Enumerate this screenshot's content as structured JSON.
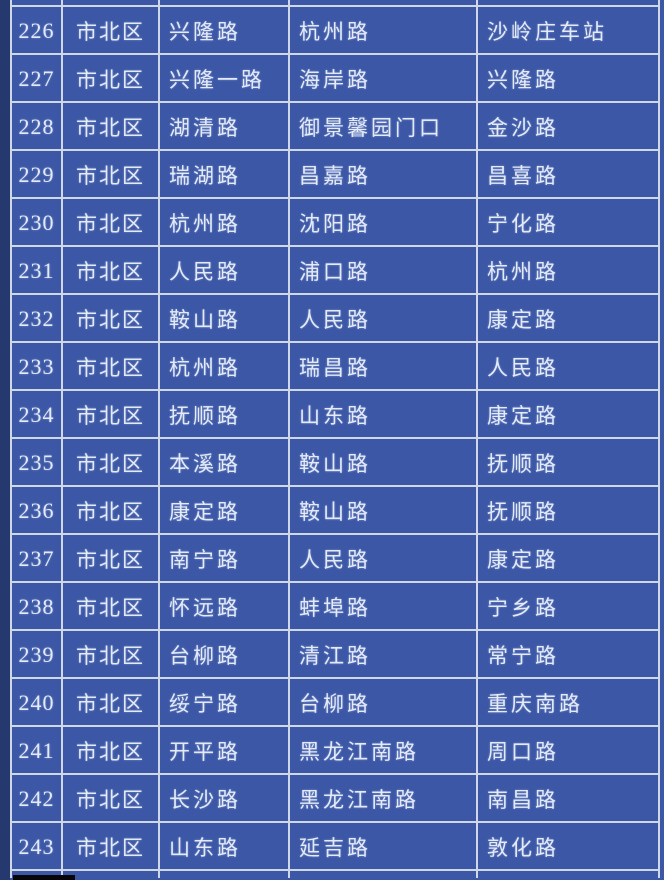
{
  "page": {
    "background_color": "#3b57a6",
    "side_strip_color": "#26396f",
    "grid_line_color": "#cfd8e9",
    "cell_color": "#3b57a6",
    "text_color": "#e4eaf8",
    "bottom_patch_color": "#060608"
  },
  "table": {
    "rows": [
      {
        "num": "226",
        "district": "市北区",
        "road": "兴隆路",
        "cross1": "杭州路",
        "cross2": "沙岭庄车站"
      },
      {
        "num": "227",
        "district": "市北区",
        "road": "兴隆一路",
        "cross1": "海岸路",
        "cross2": "兴隆路"
      },
      {
        "num": "228",
        "district": "市北区",
        "road": "湖清路",
        "cross1": "御景馨园门口",
        "cross2": "金沙路"
      },
      {
        "num": "229",
        "district": "市北区",
        "road": "瑞湖路",
        "cross1": "昌嘉路",
        "cross2": "昌喜路"
      },
      {
        "num": "230",
        "district": "市北区",
        "road": "杭州路",
        "cross1": "沈阳路",
        "cross2": "宁化路"
      },
      {
        "num": "231",
        "district": "市北区",
        "road": "人民路",
        "cross1": "浦口路",
        "cross2": "杭州路"
      },
      {
        "num": "232",
        "district": "市北区",
        "road": "鞍山路",
        "cross1": "人民路",
        "cross2": "康定路"
      },
      {
        "num": "233",
        "district": "市北区",
        "road": "杭州路",
        "cross1": "瑞昌路",
        "cross2": "人民路"
      },
      {
        "num": "234",
        "district": "市北区",
        "road": "抚顺路",
        "cross1": "山东路",
        "cross2": "康定路"
      },
      {
        "num": "235",
        "district": "市北区",
        "road": "本溪路",
        "cross1": "鞍山路",
        "cross2": "抚顺路"
      },
      {
        "num": "236",
        "district": "市北区",
        "road": "康定路",
        "cross1": "鞍山路",
        "cross2": "抚顺路"
      },
      {
        "num": "237",
        "district": "市北区",
        "road": "南宁路",
        "cross1": "人民路",
        "cross2": "康定路"
      },
      {
        "num": "238",
        "district": "市北区",
        "road": "怀远路",
        "cross1": "蚌埠路",
        "cross2": "宁乡路"
      },
      {
        "num": "239",
        "district": "市北区",
        "road": "台柳路",
        "cross1": "清江路",
        "cross2": "常宁路"
      },
      {
        "num": "240",
        "district": "市北区",
        "road": "绥宁路",
        "cross1": "台柳路",
        "cross2": "重庆南路"
      },
      {
        "num": "241",
        "district": "市北区",
        "road": "开平路",
        "cross1": "黑龙江南路",
        "cross2": "周口路"
      },
      {
        "num": "242",
        "district": "市北区",
        "road": "长沙路",
        "cross1": "黑龙江南路",
        "cross2": "南昌路"
      },
      {
        "num": "243",
        "district": "市北区",
        "road": "山东路",
        "cross1": "延吉路",
        "cross2": "敦化路"
      }
    ]
  }
}
